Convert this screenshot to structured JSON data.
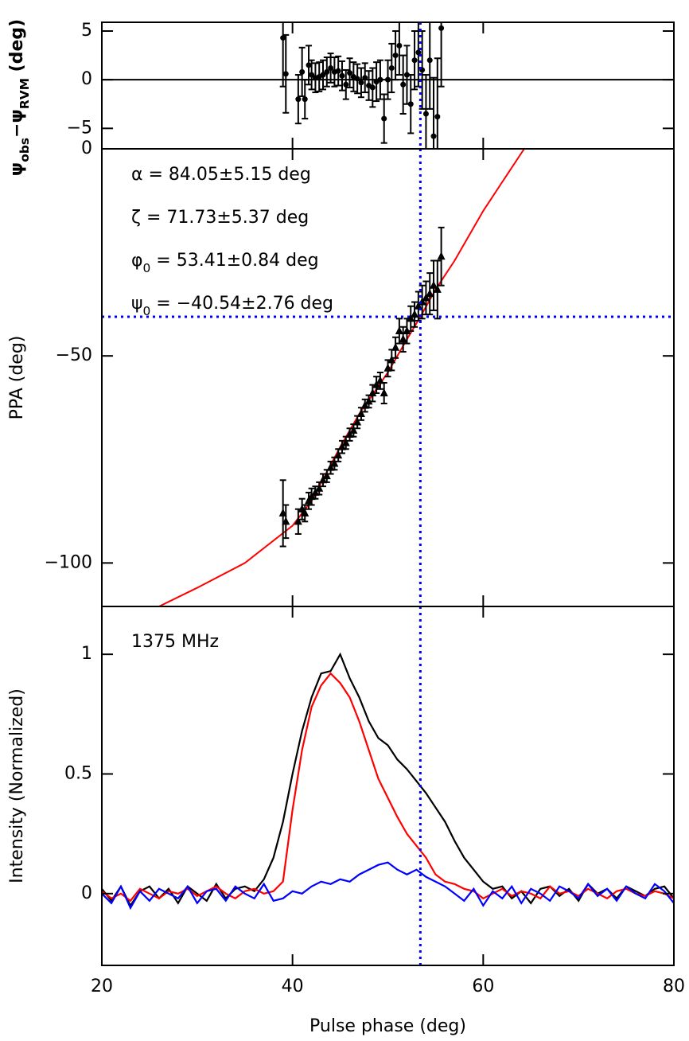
{
  "chart_data": [
    {
      "type": "scatter",
      "ylabel": [
        "ψ",
        "obs",
        "−ψ",
        "RVM",
        " (deg)"
      ],
      "xlim": [
        20,
        80
      ],
      "ylim": [
        -7.1,
        5.9
      ],
      "yticks": [
        {
          "value": -5,
          "label": "−5"
        },
        0,
        5
      ],
      "hline": 0,
      "color": "#000000",
      "x": [
        39.0,
        39.3,
        40.6,
        41.0,
        41.3,
        41.7,
        42.0,
        42.4,
        42.8,
        43.2,
        43.6,
        44.0,
        44.4,
        44.8,
        45.2,
        45.6,
        46.0,
        46.4,
        46.8,
        47.2,
        47.6,
        48.0,
        48.4,
        48.8,
        49.2,
        49.6,
        50.0,
        50.4,
        50.8,
        51.2,
        51.6,
        52.0,
        52.4,
        52.8,
        53.2,
        53.6,
        54.0,
        54.4,
        54.8,
        55.2,
        55.6
      ],
      "values": [
        4.3,
        0.6,
        -2,
        0.8,
        -2,
        1.5,
        0.5,
        0.2,
        0.3,
        0.5,
        0.8,
        1.2,
        0.8,
        0.9,
        0.4,
        -0.5,
        0.7,
        0.3,
        0.1,
        -0.3,
        0.2,
        -0.6,
        -0.8,
        -0.2,
        0,
        -4,
        0,
        1.2,
        2.5,
        3.5,
        -0.5,
        0.5,
        -2.5,
        2,
        2.8,
        1,
        -3.5,
        2,
        -5.8,
        -3.8,
        5.3
      ],
      "errors": [
        5,
        4,
        2.5,
        2.5,
        2,
        2,
        1.5,
        1.5,
        1.5,
        1.5,
        1.5,
        1.5,
        1.5,
        1.5,
        1.5,
        1.5,
        1.5,
        1.5,
        1.5,
        1.5,
        1.5,
        1.5,
        2,
        2,
        2,
        2.5,
        2,
        2.5,
        2.5,
        3,
        3,
        3,
        3,
        3,
        3.5,
        4,
        4,
        5,
        6,
        6,
        6
      ]
    },
    {
      "type": "scatter",
      "ylabel": [
        "PPA (deg)"
      ],
      "xlim": [
        20,
        80
      ],
      "ylim": [
        -110.5,
        0
      ],
      "yticks": [
        {
          "value": -100,
          "label": "−100"
        },
        {
          "value": -50,
          "label": "−50"
        },
        0
      ],
      "vline": 53.41,
      "hline": -40.54,
      "vline_color": "#0000ff",
      "color": "#000000",
      "annotations": [
        [
          "α = 84.05±5.15 deg"
        ],
        [
          "ζ = 71.73±5.37 deg"
        ],
        [
          "φ",
          "0",
          " = 53.41±0.84 deg"
        ],
        [
          "ψ",
          "0",
          " = −40.54±2.76 deg"
        ]
      ],
      "x": [
        39.0,
        39.3,
        40.6,
        41.0,
        41.3,
        41.7,
        42.0,
        42.4,
        42.8,
        43.2,
        43.6,
        44.0,
        44.4,
        44.8,
        45.2,
        45.6,
        46.0,
        46.4,
        46.8,
        47.2,
        47.6,
        48.0,
        48.4,
        48.8,
        49.2,
        49.6,
        50.0,
        50.4,
        50.8,
        51.2,
        51.6,
        52.0,
        52.4,
        52.8,
        53.2,
        53.6,
        54.0,
        54.4,
        54.8,
        55.2,
        55.6
      ],
      "values": [
        -88,
        -90,
        -90,
        -87,
        -88,
        -85,
        -84,
        -83,
        -82,
        -80,
        -79,
        -77,
        -76,
        -74,
        -72,
        -71,
        -69,
        -68,
        -66,
        -64,
        -62,
        -61,
        -59,
        -57,
        -56,
        -59,
        -53,
        -51,
        -48,
        -44,
        -46,
        -44,
        -41,
        -40,
        -38,
        -37,
        -36,
        -35,
        -33,
        -34,
        -26
      ],
      "errors": [
        8,
        4,
        3,
        2.5,
        2,
        2,
        2,
        1.5,
        1.5,
        1.5,
        1.5,
        1.5,
        1.5,
        1.5,
        1.5,
        1.5,
        1.5,
        1.5,
        1.5,
        1.5,
        1.5,
        1.5,
        2,
        2,
        2,
        2.5,
        2,
        2.5,
        2.5,
        3,
        3,
        3,
        3,
        3,
        3.5,
        4,
        4,
        5,
        6,
        7,
        7
      ],
      "fit": {
        "color": "#ff0000",
        "x": [
          26,
          30,
          35,
          40,
          42,
          45,
          47,
          50,
          52,
          53.41,
          55,
          57,
          60,
          62,
          64.3
        ],
        "values": [
          -110.5,
          -106,
          -100,
          -91,
          -85,
          -72,
          -64,
          -54,
          -46,
          -40.54,
          -34,
          -27,
          -15,
          -8,
          0
        ]
      }
    },
    {
      "type": "line",
      "ylabel": [
        "Intensity (Normalized)"
      ],
      "xlabel": "Pulse phase (deg)",
      "annotation": "1375 MHz",
      "xlim": [
        20,
        80
      ],
      "ylim": [
        -0.3,
        1.2
      ],
      "xticks": [
        20,
        40,
        60,
        80
      ],
      "yticks": [
        0,
        0.5,
        1
      ],
      "x": [
        20,
        21,
        22,
        23,
        24,
        25,
        26,
        27,
        28,
        29,
        30,
        31,
        32,
        33,
        34,
        35,
        36,
        37,
        38,
        39,
        40,
        41,
        42,
        43,
        44,
        45,
        46,
        47,
        48,
        49,
        50,
        51,
        52,
        53,
        54,
        55,
        56,
        57,
        58,
        59,
        60,
        61,
        62,
        63,
        64,
        65,
        66,
        67,
        68,
        69,
        70,
        71,
        72,
        73,
        74,
        75,
        76,
        77,
        78,
        79,
        80
      ],
      "series": [
        {
          "color": "#000000",
          "values": [
            0.02,
            -0.03,
            0.03,
            -0.05,
            0.01,
            0.03,
            -0.02,
            0.02,
            -0.04,
            0.03,
            0.0,
            -0.03,
            0.04,
            -0.02,
            0.02,
            0.03,
            0.01,
            0.06,
            0.15,
            0.3,
            0.5,
            0.68,
            0.82,
            0.92,
            0.93,
            1.0,
            0.9,
            0.82,
            0.72,
            0.65,
            0.62,
            0.56,
            0.52,
            0.47,
            0.42,
            0.36,
            0.3,
            0.22,
            0.15,
            0.1,
            0.05,
            0.02,
            0.03,
            -0.02,
            0.01,
            -0.04,
            0.02,
            0.03,
            -0.01,
            0.02,
            -0.03,
            0.04,
            0.0,
            0.02,
            -0.02,
            0.03,
            0.01,
            -0.01,
            0.02,
            0.03,
            -0.02
          ]
        },
        {
          "color": "#ff0000",
          "values": [
            0.01,
            -0.02,
            0.0,
            -0.03,
            0.02,
            0.0,
            -0.02,
            0.01,
            0.0,
            0.02,
            -0.01,
            0.01,
            0.03,
            0.0,
            -0.02,
            0.01,
            0.02,
            0.0,
            0.01,
            0.05,
            0.35,
            0.6,
            0.78,
            0.87,
            0.92,
            0.88,
            0.82,
            0.72,
            0.6,
            0.48,
            0.4,
            0.32,
            0.25,
            0.2,
            0.15,
            0.08,
            0.05,
            0.04,
            0.02,
            0.01,
            -0.02,
            0.0,
            0.02,
            -0.01,
            0.01,
            0.0,
            -0.02,
            0.03,
            0.0,
            0.01,
            -0.01,
            0.02,
            0.0,
            -0.02,
            0.01,
            0.02,
            0.0,
            -0.01,
            0.01,
            0.0,
            -0.02
          ]
        },
        {
          "color": "#0000ff",
          "values": [
            0.0,
            -0.04,
            0.03,
            -0.06,
            0.01,
            -0.03,
            0.02,
            0.0,
            -0.02,
            0.03,
            -0.04,
            0.01,
            0.02,
            -0.03,
            0.03,
            0.0,
            -0.02,
            0.04,
            -0.03,
            -0.02,
            0.01,
            0.0,
            0.03,
            0.05,
            0.04,
            0.06,
            0.05,
            0.08,
            0.1,
            0.12,
            0.13,
            0.1,
            0.08,
            0.1,
            0.07,
            0.05,
            0.03,
            0.0,
            -0.03,
            0.02,
            -0.05,
            0.01,
            -0.02,
            0.03,
            -0.04,
            0.02,
            0.0,
            -0.03,
            0.03,
            0.01,
            -0.02,
            0.04,
            -0.01,
            0.02,
            -0.03,
            0.03,
            0.0,
            -0.02,
            0.04,
            0.01,
            -0.04
          ]
        }
      ]
    }
  ]
}
